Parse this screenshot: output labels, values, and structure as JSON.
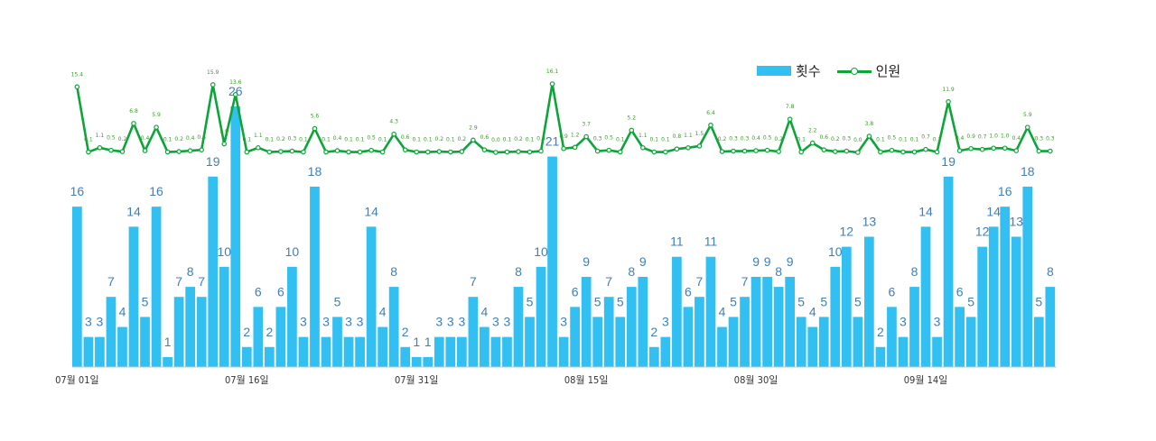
{
  "chart_data": {
    "type": "bar+line",
    "title": "",
    "legend_position": "top-right",
    "series": [
      {
        "name": "횟수",
        "type": "bar",
        "color": "#32C0F2",
        "label_color": "#3F7FB8",
        "values": [
          16,
          3,
          3,
          7,
          4,
          14,
          5,
          16,
          1,
          7,
          8,
          7,
          19,
          10,
          26,
          2,
          6,
          2,
          6,
          10,
          3,
          18,
          3,
          5,
          3,
          3,
          14,
          4,
          8,
          2,
          1,
          1,
          3,
          3,
          3,
          7,
          4,
          3,
          3,
          8,
          5,
          10,
          21,
          3,
          6,
          9,
          5,
          7,
          5,
          8,
          9,
          2,
          3,
          11,
          6,
          7,
          11,
          4,
          5,
          7,
          9,
          9,
          8,
          9,
          5,
          4,
          5,
          10,
          12,
          5,
          13,
          2,
          6,
          3,
          8,
          14,
          3,
          19,
          6,
          5,
          12,
          14,
          16,
          13,
          18,
          5,
          8
        ],
        "labels": [
          "16",
          "3",
          "3",
          "7",
          "4",
          "14",
          "5",
          "16",
          "1",
          "7",
          "8",
          "7",
          "19",
          "10",
          "26",
          "2",
          "6",
          "2",
          "6",
          "10",
          "3",
          "18",
          "3",
          "5",
          "3",
          "3",
          "14",
          "4",
          "8",
          "2",
          "1",
          "1",
          "3",
          "3",
          "3",
          "7",
          "4",
          "3",
          "3",
          "8",
          "5",
          "10",
          "21",
          "3",
          "6",
          "9",
          "5",
          "7",
          "5",
          "8",
          "9",
          "2",
          "3",
          "11",
          "6",
          "7",
          "11",
          "4",
          "5",
          "7",
          "9",
          "9",
          "8",
          "9",
          "5",
          "4",
          "5",
          "10",
          "12",
          "5",
          "13",
          "2",
          "6",
          "3",
          "8",
          "14",
          "3",
          "19",
          "6",
          "5",
          "12",
          "14",
          "16",
          "13",
          "18",
          "5",
          "8"
        ]
      },
      {
        "name": "인원",
        "type": "line",
        "color": "#0DA53A",
        "values": [
          15.4,
          0.1,
          1.1,
          0.5,
          0.2,
          6.8,
          0.4,
          5.9,
          0.1,
          0.2,
          0.4,
          0.6,
          15.9,
          2.0,
          13.6,
          0.1,
          1.1,
          0.1,
          0.2,
          0.3,
          0.1,
          5.6,
          0.1,
          0.4,
          0.1,
          0.1,
          0.5,
          0.1,
          4.3,
          0.6,
          0.1,
          0.1,
          0.2,
          0.1,
          0.2,
          2.9,
          0.6,
          0.0,
          0.1,
          0.2,
          0.1,
          0.3,
          16.1,
          0.9,
          1.2,
          3.7,
          0.3,
          0.5,
          0.1,
          5.2,
          1.1,
          0.1,
          0.1,
          0.8,
          1.1,
          1.5,
          6.4,
          0.2,
          0.3,
          0.3,
          0.4,
          0.5,
          0.2,
          7.8,
          0.1,
          2.2,
          0.6,
          0.2,
          0.3,
          0.0,
          3.8,
          0.1,
          0.5,
          0.1,
          0.1,
          0.7,
          0.1,
          11.9,
          0.4,
          0.9,
          0.7,
          1.0,
          1.0,
          0.4,
          5.9,
          0.3,
          0.3
        ],
        "labels": [
          "15.4",
          "0.1",
          "1.1",
          "0.5",
          "0.2",
          "6.8",
          "0.4",
          "5.9",
          "0.1",
          "0.2",
          "0.4",
          "0.6",
          "15.9",
          "2.0",
          "13.6",
          "0.1",
          "1.1",
          "0.1",
          "0.2",
          "0.3",
          "0.1",
          "5.6",
          "0.1",
          "0.4",
          "0.1",
          "0.1",
          "0.5",
          "0.1",
          "4.3",
          "0.6",
          "0.1",
          "0.1",
          "0.2",
          "0.1",
          "0.2",
          "2.9",
          "0.6",
          "0.0",
          "0.1",
          "0.2",
          "0.1",
          "0.3",
          "16.1",
          "0.9",
          "1.2",
          "3.7",
          "0.3",
          "0.5",
          "0.1",
          "5.2",
          "1.1",
          "0.1",
          "0.1",
          "0.8",
          "1.1",
          "1.5",
          "6.4",
          "0.2",
          "0.3",
          "0.3",
          "0.4",
          "0.5",
          "0.2",
          "7.8",
          "0.1",
          "2.2",
          "0.6",
          "0.2",
          "0.3",
          "0.0",
          "3.8",
          "0.1",
          "0.5",
          "0.1",
          "0.1",
          "0.7",
          "0.1",
          "11.9",
          "0.4",
          "0.9",
          "0.7",
          "1.0",
          "1.0",
          "0.4",
          "5.9",
          "0.3",
          "0.3"
        ]
      }
    ],
    "x_ticks": [
      {
        "index": 0,
        "label": "07월 01일"
      },
      {
        "index": 15,
        "label": "07월 16일"
      },
      {
        "index": 30,
        "label": "07월 31일"
      },
      {
        "index": 45,
        "label": "08월 15일"
      },
      {
        "index": 60,
        "label": "08월 30일"
      },
      {
        "index": 75,
        "label": "09월 14일"
      }
    ],
    "ylim_bar": [
      0,
      26
    ],
    "ylim_line": [
      0,
      16.1
    ],
    "grid": false
  },
  "legend": {
    "bar_label": "횟수",
    "line_label": "인원"
  }
}
